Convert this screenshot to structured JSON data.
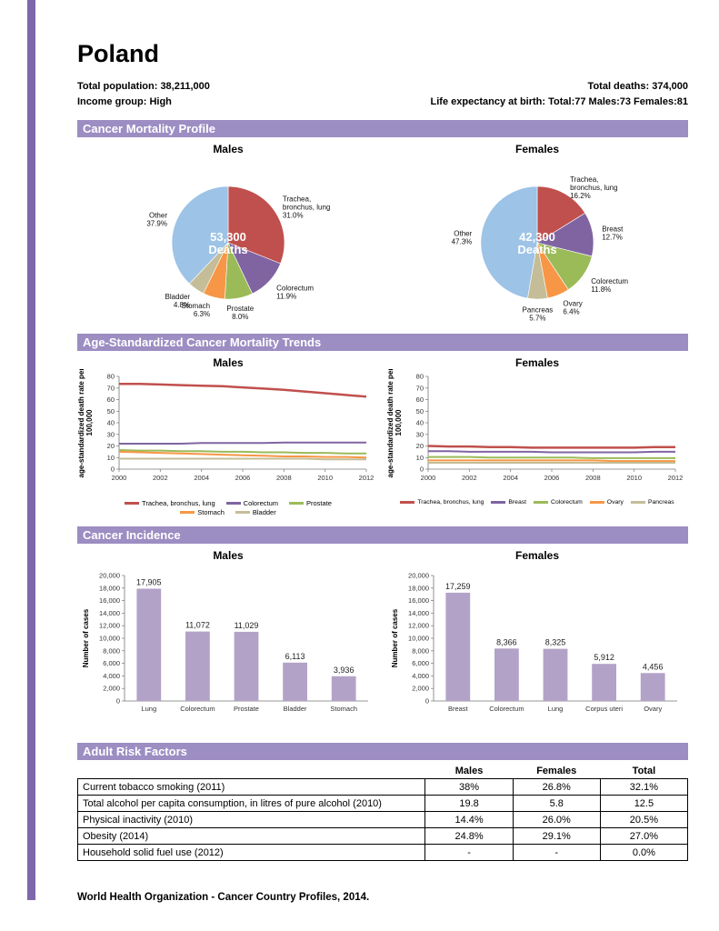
{
  "page": {
    "title": "Poland",
    "footer": "World Health Organization - Cancer Country Profiles, 2014."
  },
  "header_stats": {
    "population": "Total population: 38,211,000",
    "income": "Income group:  High",
    "deaths": "Total deaths: 374,000",
    "life_expectancy": "Life expectancy at birth:  Total:77  Males:73  Females:81"
  },
  "sections": {
    "mortality": "Cancer Mortality Profile",
    "trends": "Age-Standardized Cancer Mortality Trends",
    "incidence": "Cancer Incidence",
    "risk": "Adult Risk Factors"
  },
  "risk_factors": {
    "columns": [
      "Males",
      "Females",
      "Total"
    ],
    "rows": [
      {
        "label": "Current tobacco smoking (2011)",
        "males": "38%",
        "females": "26.8%",
        "total": "32.1%"
      },
      {
        "label": "Total alcohol per capita consumption, in litres of pure alcohol (2010)",
        "males": "19.8",
        "females": "5.8",
        "total": "12.5"
      },
      {
        "label": "Physical inactivity (2010)",
        "males": "14.4%",
        "females": "26.0%",
        "total": "20.5%"
      },
      {
        "label": "Obesity (2014)",
        "males": "24.8%",
        "females": "29.1%",
        "total": "27.0%"
      },
      {
        "label": "Household solid fuel use (2012)",
        "males": "-",
        "females": "-",
        "total": "0.0%"
      }
    ]
  },
  "chart_data": [
    {
      "id": "pie-males",
      "type": "pie",
      "title": "Males",
      "center_label": [
        "53,300",
        "Deaths"
      ],
      "slices": [
        {
          "label": "Trachea, bronchus, lung",
          "pct": 31.0,
          "color": "#C0504D",
          "label_lines": [
            "Trachea,",
            "bronchus, lung",
            "31.0%"
          ]
        },
        {
          "label": "Colorectum",
          "pct": 11.9,
          "color": "#8064A2",
          "label_lines": [
            "Colorectum",
            "11.9%"
          ]
        },
        {
          "label": "Prostate",
          "pct": 8.0,
          "color": "#9BBB59",
          "label_lines": [
            "Prostate",
            "8.0%"
          ]
        },
        {
          "label": "Stomach",
          "pct": 6.3,
          "color": "#F79646",
          "label_lines": [
            "Stomach",
            "6.3%"
          ]
        },
        {
          "label": "Bladder",
          "pct": 4.8,
          "color": "#C4BD97",
          "label_lines": [
            "Bladder",
            "4.8%"
          ]
        },
        {
          "label": "Other",
          "pct": 37.9,
          "color": "#9DC3E6",
          "label_lines": [
            "Other",
            "37.9%"
          ]
        }
      ]
    },
    {
      "id": "pie-females",
      "type": "pie",
      "title": "Females",
      "center_label": [
        "42,300",
        "Deaths"
      ],
      "slices": [
        {
          "label": "Trachea, bronchus, lung",
          "pct": 16.2,
          "color": "#C0504D",
          "label_lines": [
            "Trachea,",
            "bronchus, lung",
            "16.2%"
          ]
        },
        {
          "label": "Breast",
          "pct": 12.7,
          "color": "#8064A2",
          "label_lines": [
            "Breast",
            "12.7%"
          ]
        },
        {
          "label": "Colorectum",
          "pct": 11.8,
          "color": "#9BBB59",
          "label_lines": [
            "Colorectum",
            "11.8%"
          ]
        },
        {
          "label": "Ovary",
          "pct": 6.4,
          "color": "#F79646",
          "label_lines": [
            "Ovary",
            "6.4%"
          ]
        },
        {
          "label": "Pancreas",
          "pct": 5.7,
          "color": "#C4BD97",
          "label_lines": [
            "Pancreas",
            "5.7%"
          ]
        },
        {
          "label": "Other",
          "pct": 47.3,
          "color": "#9DC3E6",
          "label_lines": [
            "Other",
            "47.3%"
          ]
        }
      ]
    },
    {
      "id": "line-males",
      "type": "line",
      "title": "Males",
      "ylabel": [
        "age-standardized death rate per",
        "100,000"
      ],
      "x": [
        2000,
        2001,
        2002,
        2003,
        2004,
        2005,
        2006,
        2007,
        2008,
        2009,
        2010,
        2011,
        2012
      ],
      "xtick_every": 2,
      "ylim": [
        0,
        80
      ],
      "ystep": 10,
      "legend_cols": 3,
      "series": [
        {
          "name": "Trachea, bronchus, lung",
          "color": "#C0504D",
          "width": 2.5,
          "values": [
            73.5,
            73.5,
            73,
            72.5,
            72,
            71.5,
            70.5,
            69.5,
            68.5,
            67,
            65.5,
            64,
            62.5
          ]
        },
        {
          "name": "Colorectum",
          "color": "#8064A2",
          "width": 2,
          "values": [
            22,
            22,
            22,
            22,
            22.5,
            22.5,
            22.5,
            22.5,
            23,
            23,
            23,
            23,
            23
          ]
        },
        {
          "name": "Prostate",
          "color": "#9BBB59",
          "width": 2,
          "values": [
            16.5,
            16,
            16,
            15.5,
            15.5,
            15,
            15,
            14.5,
            14.5,
            14,
            14,
            13.5,
            13.5
          ]
        },
        {
          "name": "Stomach",
          "color": "#F79646",
          "width": 2,
          "values": [
            15,
            14.5,
            14,
            13.5,
            13,
            12.5,
            12,
            11.5,
            11,
            11,
            10.5,
            10.5,
            10
          ]
        },
        {
          "name": "Bladder",
          "color": "#C4BD97",
          "width": 2,
          "values": [
            9,
            9,
            9,
            9,
            9,
            9,
            9,
            9,
            9,
            9,
            8.5,
            8.5,
            8.5
          ]
        }
      ]
    },
    {
      "id": "line-females",
      "type": "line",
      "title": "Females",
      "ylabel": [
        "age-standardized death rate per",
        "100,000"
      ],
      "x": [
        2000,
        2001,
        2002,
        2003,
        2004,
        2005,
        2006,
        2007,
        2008,
        2009,
        2010,
        2011,
        2012
      ],
      "xtick_every": 2,
      "ylim": [
        0,
        80
      ],
      "ystep": 10,
      "legend_cols": 5,
      "series": [
        {
          "name": "Trachea, bronchus, lung",
          "color": "#C0504D",
          "width": 2.5,
          "values": [
            20,
            19.5,
            19.5,
            19,
            19,
            18.5,
            18.5,
            18.5,
            18.5,
            18.5,
            18.5,
            19,
            19
          ]
        },
        {
          "name": "Breast",
          "color": "#8064A2",
          "width": 2,
          "values": [
            15.5,
            15.5,
            15,
            15,
            15,
            15,
            14.5,
            14.5,
            14.5,
            14.5,
            14.5,
            15,
            15
          ]
        },
        {
          "name": "Colorectum",
          "color": "#9BBB59",
          "width": 2,
          "values": [
            10.5,
            10.5,
            10.5,
            10,
            10,
            10,
            10,
            10,
            9.5,
            9.5,
            9.5,
            9.5,
            9.5
          ]
        },
        {
          "name": "Ovary",
          "color": "#F79646",
          "width": 2,
          "values": [
            7.5,
            7.5,
            7.5,
            7.5,
            7.5,
            7.5,
            7.5,
            7.5,
            7.5,
            7,
            7,
            7,
            7
          ]
        },
        {
          "name": "Pancreas",
          "color": "#C4BD97",
          "width": 2,
          "values": [
            5.5,
            5.5,
            5.5,
            5.5,
            5.5,
            5.5,
            5.5,
            5.5,
            5.5,
            5.5,
            5.5,
            5.5,
            5.5
          ]
        }
      ]
    },
    {
      "id": "bar-males",
      "type": "bar",
      "title": "Males",
      "ylabel": "Number of cases",
      "ylim": [
        0,
        20000
      ],
      "ystep": 2000,
      "bar_color": "#B3A2C7",
      "categories": [
        "Lung",
        "Colorectum",
        "Prostate",
        "Bladder",
        "Stomach"
      ],
      "values": [
        17905,
        11072,
        11029,
        6113,
        3936
      ]
    },
    {
      "id": "bar-females",
      "type": "bar",
      "title": "Females",
      "ylabel": "Number of cases",
      "ylim": [
        0,
        20000
      ],
      "ystep": 2000,
      "bar_color": "#B3A2C7",
      "categories": [
        "Breast",
        "Colorectum",
        "Lung",
        "Corpus uteri",
        "Ovary"
      ],
      "values": [
        17259,
        8366,
        8325,
        5912,
        4456
      ]
    }
  ]
}
